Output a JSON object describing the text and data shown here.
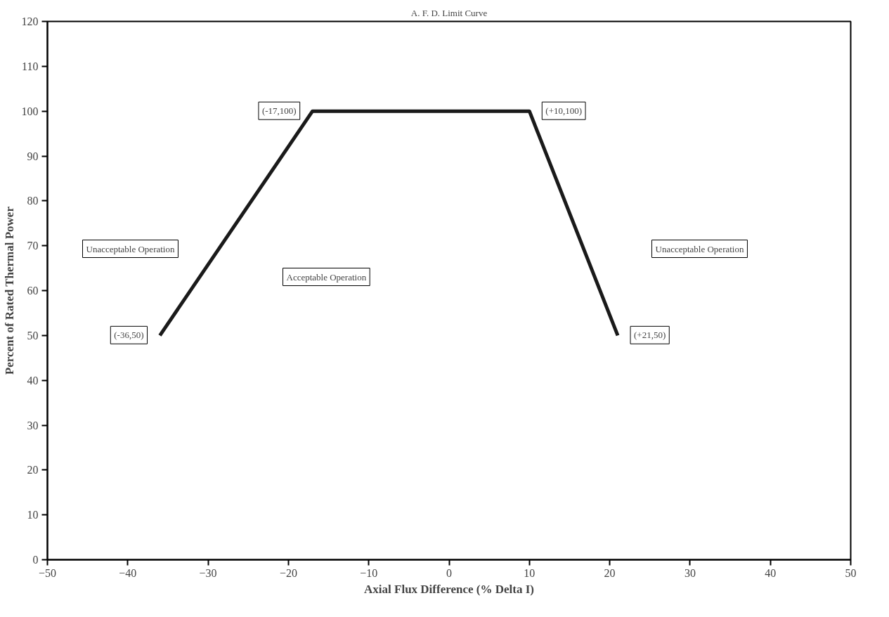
{
  "chart_data": {
    "type": "line",
    "title": "A. F. D. Limit Curve",
    "xlabel": "Axial Flux Difference (% Delta I)",
    "ylabel": "Percent of Rated Thermal Power",
    "x": [
      -36,
      -17,
      10,
      21
    ],
    "series": [
      {
        "color": "#1a1a1a",
        "values": [
          50,
          100,
          100,
          50
        ]
      }
    ],
    "xlim": [
      -50,
      50
    ],
    "ylim": [
      0,
      120
    ],
    "xticks": [
      -50,
      -40,
      -30,
      -20,
      -10,
      0,
      10,
      20,
      30,
      40,
      50
    ],
    "yticks": [
      0,
      10,
      20,
      30,
      40,
      50,
      60,
      70,
      80,
      90,
      100,
      110,
      120
    ],
    "grid": false,
    "marker": "none",
    "line_style": "solid",
    "annotations": [
      {
        "text": "(-36,50)",
        "x": -36,
        "y": 50
      },
      {
        "text": "(-17,100)",
        "x": -17,
        "y": 100
      },
      {
        "text": "(+10,100)",
        "x": 10,
        "y": 100
      },
      {
        "text": "(+21,50)",
        "x": 21,
        "y": 50
      },
      "Unacceptable Operation",
      "Acceptable Operation",
      "Unacceptable Operation"
    ]
  }
}
